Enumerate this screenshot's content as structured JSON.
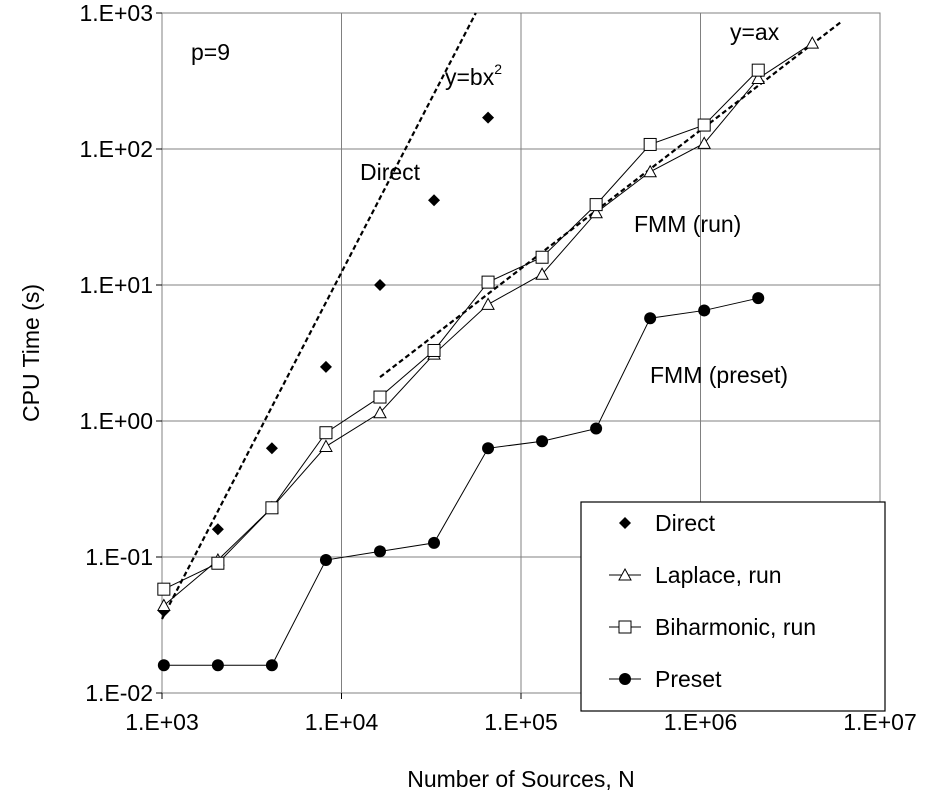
{
  "chart_data": {
    "type": "scatter",
    "x_scale": "log",
    "y_scale": "log",
    "xlim": [
      1000,
      10000000
    ],
    "ylim": [
      0.01,
      1000
    ],
    "grid": true,
    "xlabel": "Number of Sources, N",
    "ylabel": "CPU Time (s)",
    "x_tick_values": [
      1000,
      10000,
      100000,
      1000000,
      10000000
    ],
    "x_tick_labels": [
      "1.E+03",
      "1.E+04",
      "1.E+05",
      "1.E+06",
      "1.E+07"
    ],
    "y_tick_values": [
      0.01,
      0.1,
      1,
      10,
      100,
      1000
    ],
    "y_tick_labels": [
      "1.E-02",
      "1.E-01",
      "1.E+00",
      "1.E+01",
      "1.E+02",
      "1.E+03"
    ],
    "legend_position": "bottom-right",
    "series": [
      {
        "name": "Direct",
        "marker": "diamond-filled",
        "line": false,
        "x": [
          1024,
          2048,
          4096,
          8192,
          16384,
          32768,
          65536
        ],
        "y": [
          0.04,
          0.16,
          0.63,
          2.5,
          10,
          42,
          170
        ]
      },
      {
        "name": "Laplace, run",
        "marker": "triangle-open",
        "line": true,
        "x": [
          1024,
          2048,
          4096,
          8192,
          16384,
          32768,
          65536,
          131072,
          262144,
          524288,
          1048576,
          2097152,
          4194304
        ],
        "y": [
          0.044,
          0.095,
          0.23,
          0.65,
          1.15,
          3.1,
          7.2,
          12,
          34,
          68,
          110,
          330,
          600
        ]
      },
      {
        "name": "Biharmonic, run",
        "marker": "square-open",
        "line": true,
        "x": [
          1024,
          2048,
          4096,
          8192,
          16384,
          32768,
          65536,
          131072,
          262144,
          524288,
          1048576,
          2097152
        ],
        "y": [
          0.058,
          0.09,
          0.23,
          0.82,
          1.5,
          3.3,
          10.5,
          16,
          39,
          108,
          150,
          380
        ]
      },
      {
        "name": "Preset",
        "marker": "circle-filled",
        "line": true,
        "x": [
          1024,
          2048,
          4096,
          8192,
          16384,
          32768,
          65536,
          131072,
          262144,
          524288,
          1048576,
          2097152
        ],
        "y": [
          0.016,
          0.016,
          0.016,
          0.095,
          0.11,
          0.127,
          0.63,
          0.71,
          0.88,
          5.7,
          6.5,
          8
        ]
      }
    ],
    "fit_lines": [
      {
        "label": "y=bx",
        "label_superscript": "2",
        "x": [
          1000,
          56000
        ],
        "y": [
          0.035,
          1000
        ]
      },
      {
        "label": "y=ax",
        "x": [
          16384,
          6000000
        ],
        "y": [
          2.1,
          850
        ]
      }
    ],
    "annotations": [
      {
        "id": "p",
        "text": "p=9"
      },
      {
        "id": "direct",
        "text": "Direct"
      },
      {
        "id": "fmm-run",
        "text": "FMM (run)"
      },
      {
        "id": "fmm-preset",
        "text": "FMM (preset)"
      }
    ]
  }
}
